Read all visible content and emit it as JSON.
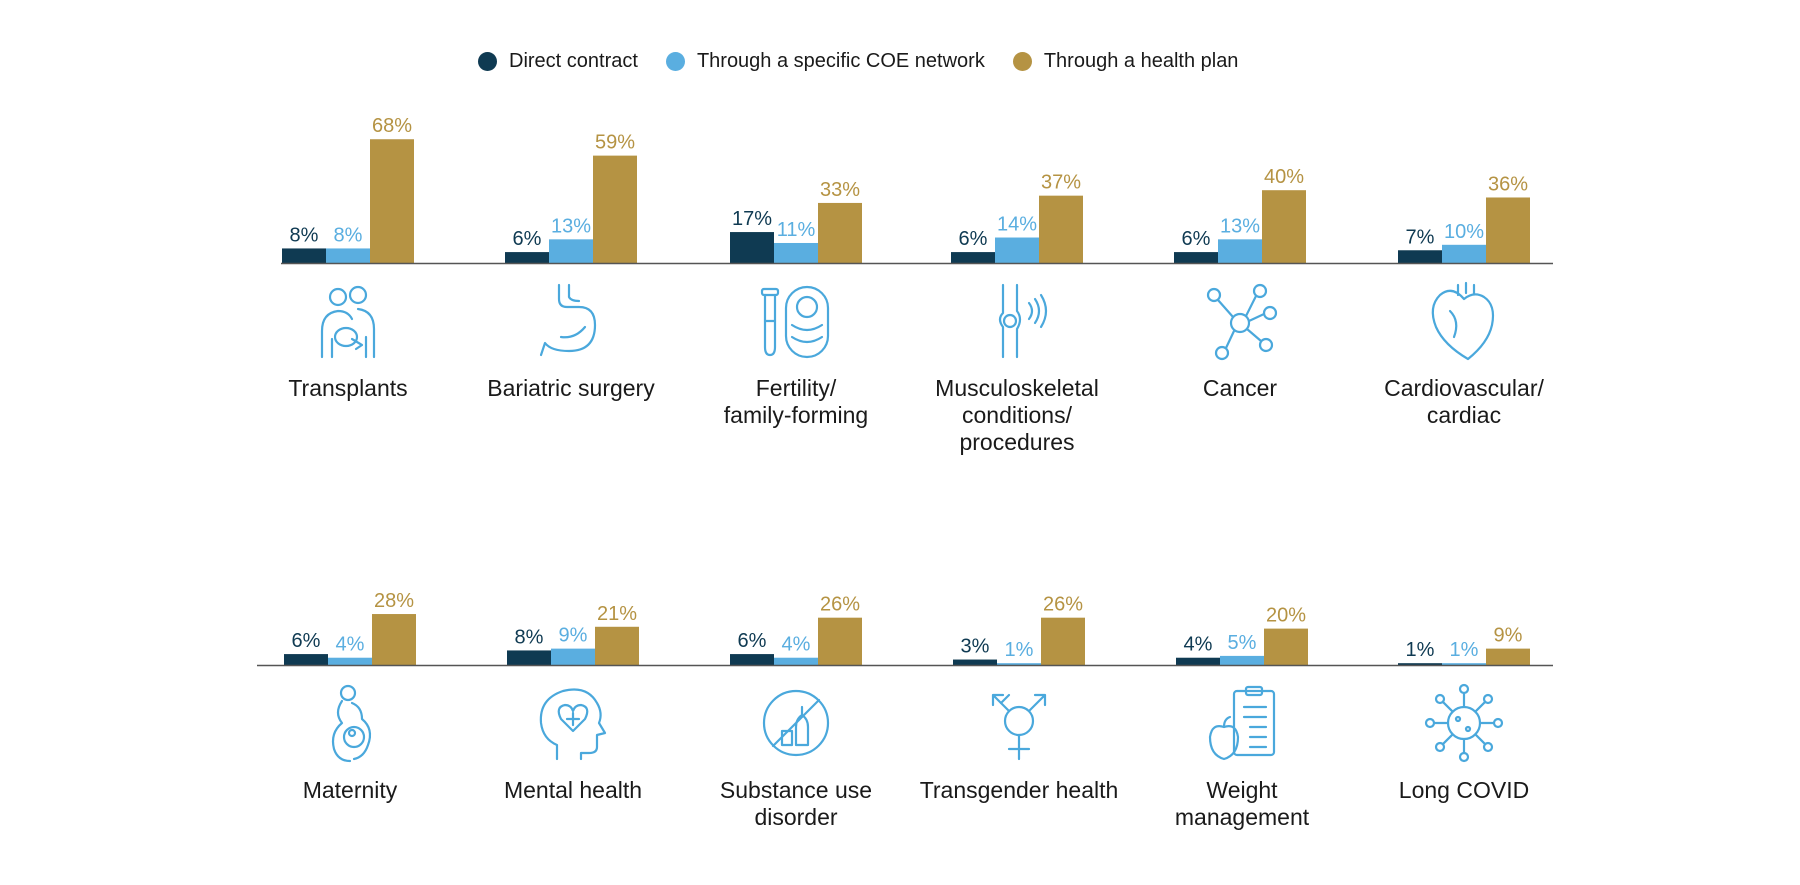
{
  "colors": {
    "direct": "#0f3a52",
    "coe": "#5aaee0",
    "plan": "#b59343",
    "axis": "#555555",
    "icon": "#4aa8dc"
  },
  "legend": [
    {
      "label": "Direct contract",
      "color": "#0f3a52"
    },
    {
      "label": "Through a specific COE network",
      "color": "#5aaee0"
    },
    {
      "label": "Through a health plan",
      "color": "#b59343"
    }
  ],
  "chart_data": {
    "type": "bar",
    "value_suffix": "%",
    "series": [
      {
        "name": "Direct contract",
        "values": [
          8,
          6,
          17,
          6,
          6,
          7,
          6,
          8,
          6,
          3,
          4,
          1
        ]
      },
      {
        "name": "Through a specific COE network",
        "values": [
          8,
          13,
          11,
          14,
          13,
          10,
          4,
          9,
          4,
          1,
          5,
          1
        ]
      },
      {
        "name": "Through a health plan",
        "values": [
          68,
          59,
          33,
          37,
          40,
          36,
          28,
          21,
          26,
          26,
          20,
          9
        ]
      }
    ],
    "categories": [
      {
        "lines": [
          "Transplants"
        ],
        "icon": "transplant-icon"
      },
      {
        "lines": [
          "Bariatric surgery"
        ],
        "icon": "stomach-icon"
      },
      {
        "lines": [
          "Fertility/",
          "family-forming"
        ],
        "icon": "baby-test-tube-icon"
      },
      {
        "lines": [
          "Musculoskeletal",
          "conditions/",
          "procedures"
        ],
        "icon": "knee-joint-icon"
      },
      {
        "lines": [
          "Cancer"
        ],
        "icon": "molecule-icon"
      },
      {
        "lines": [
          "Cardiovascular/",
          "cardiac"
        ],
        "icon": "heart-icon"
      },
      {
        "lines": [
          "Maternity"
        ],
        "icon": "pregnancy-icon"
      },
      {
        "lines": [
          "Mental health"
        ],
        "icon": "head-heart-icon"
      },
      {
        "lines": [
          "Substance use",
          "disorder"
        ],
        "icon": "no-bottle-icon"
      },
      {
        "lines": [
          "Transgender health"
        ],
        "icon": "transgender-symbol-icon"
      },
      {
        "lines": [
          "Weight",
          "management"
        ],
        "icon": "apple-clipboard-icon"
      },
      {
        "lines": [
          "Long COVID"
        ],
        "icon": "virus-icon"
      }
    ],
    "ylim": [
      0,
      100
    ],
    "grid": false,
    "legend_position": "top-center"
  }
}
